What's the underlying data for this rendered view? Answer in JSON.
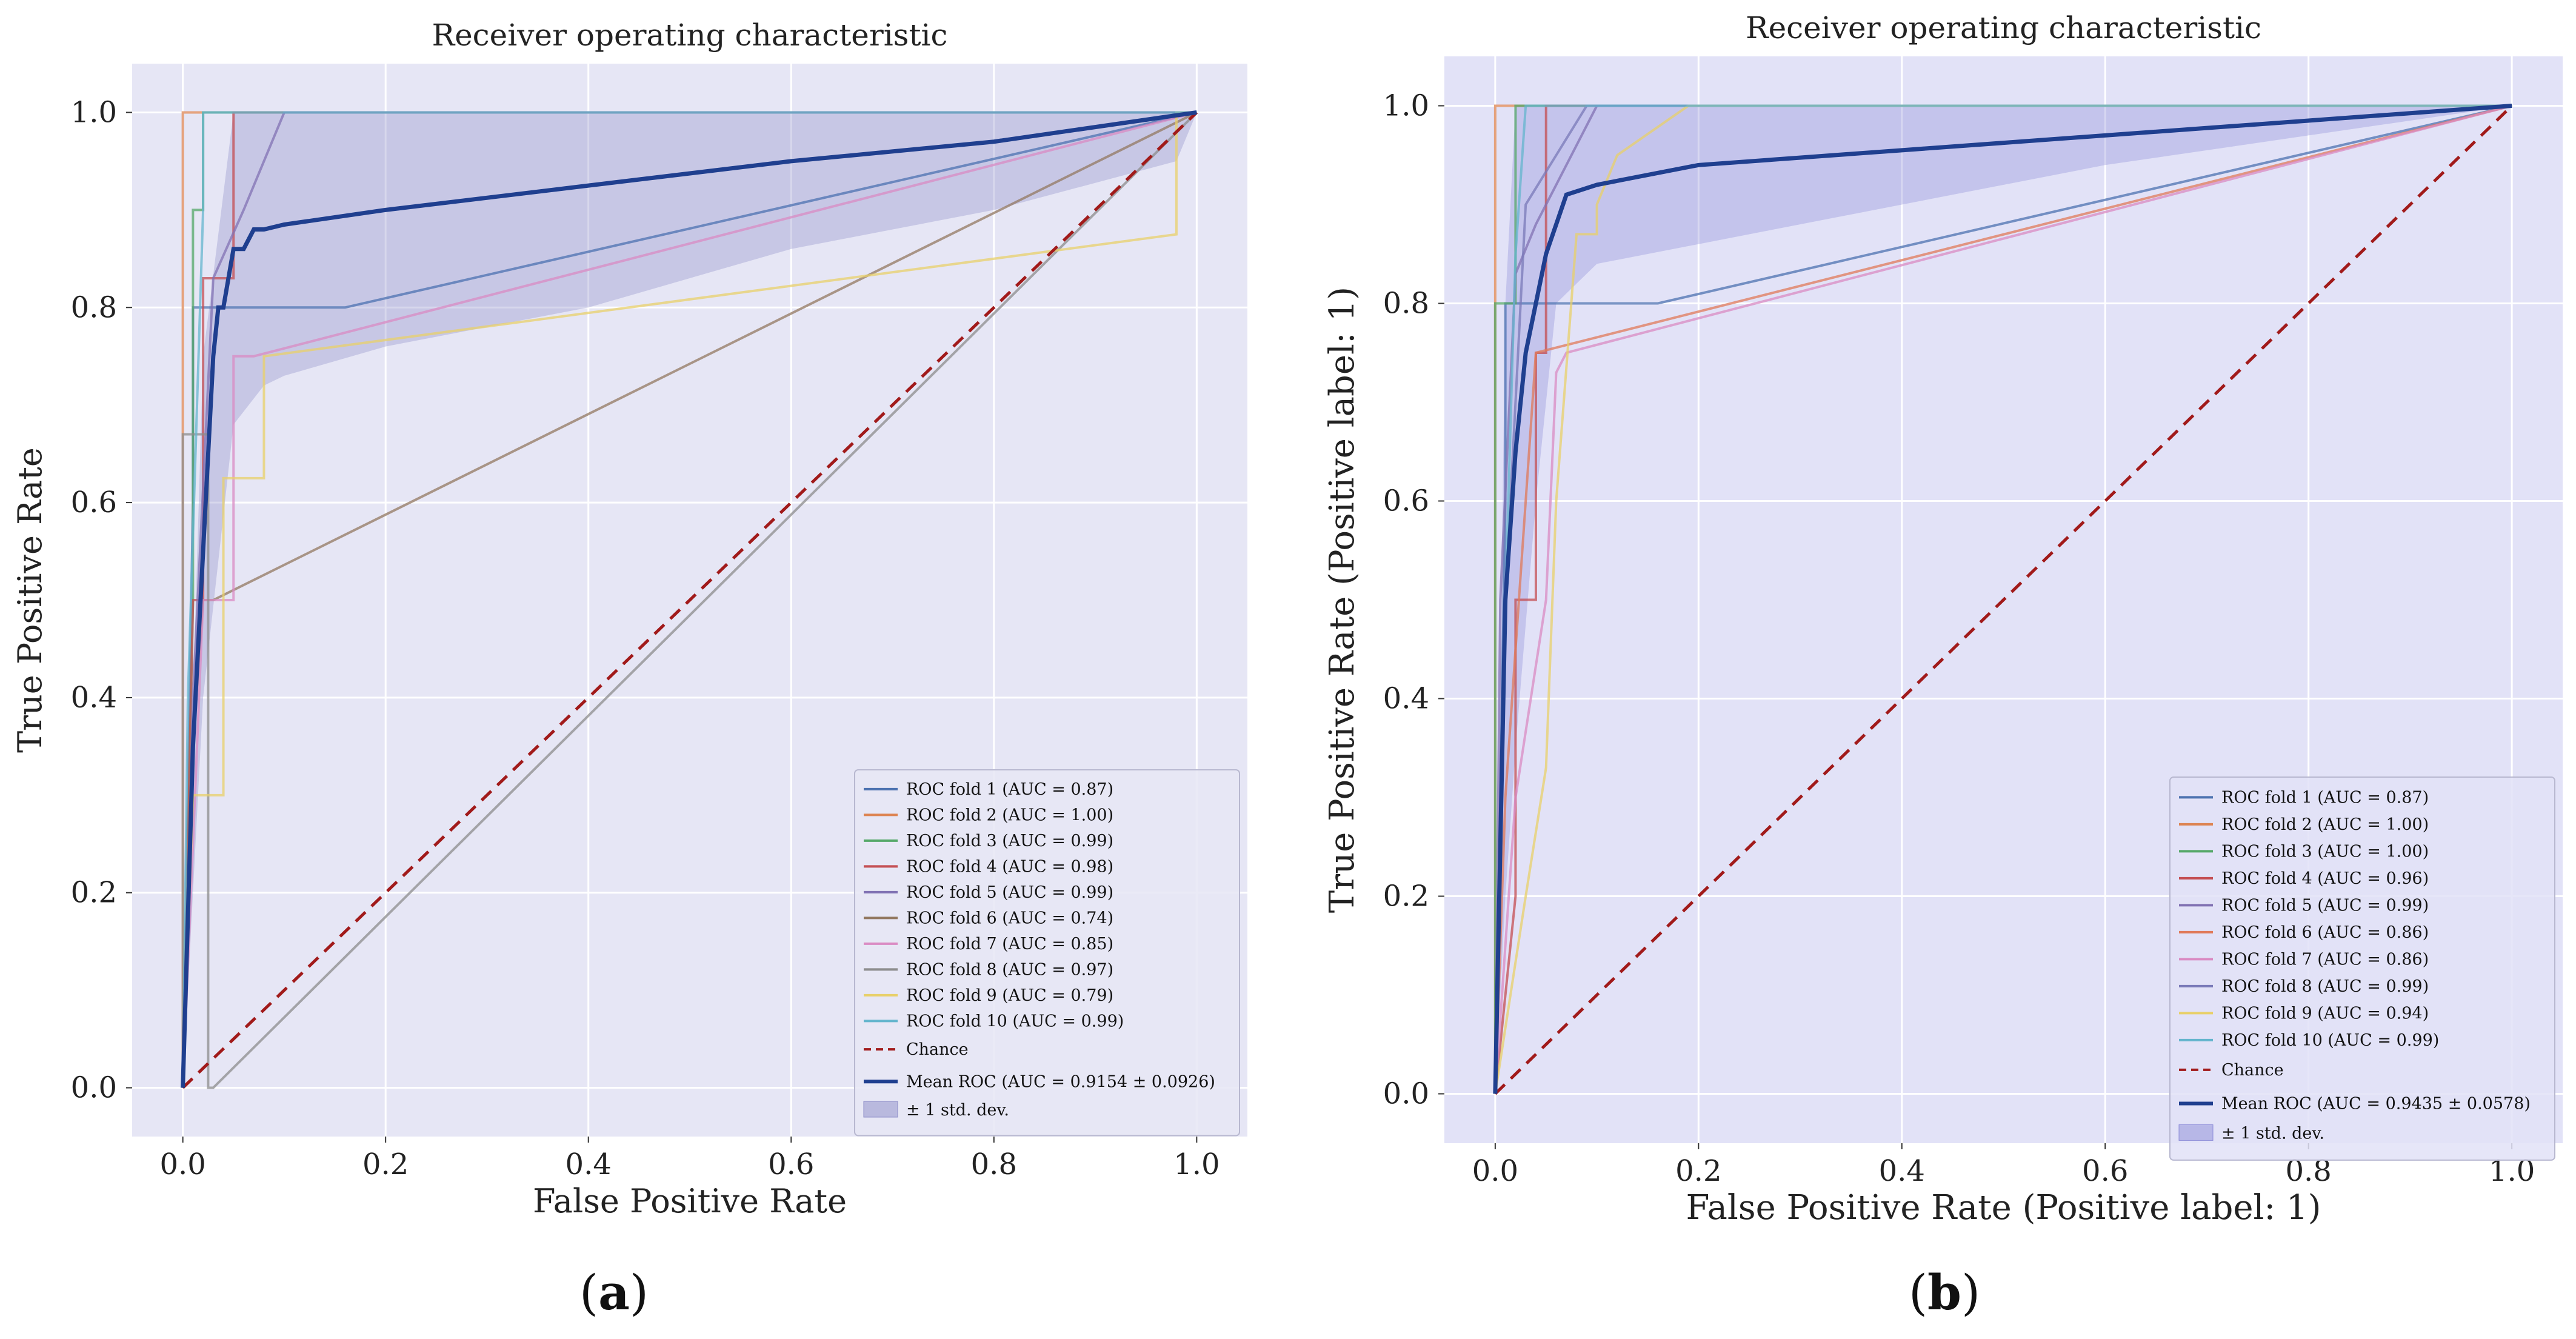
{
  "captions": [
    {
      "open": "(",
      "letter": "a",
      "close": ")"
    },
    {
      "open": "(",
      "letter": "b",
      "close": ")"
    }
  ],
  "chart_data": [
    {
      "type": "line",
      "panel": "a",
      "title": "Receiver operating characteristic",
      "xlabel": "False Positive Rate",
      "ylabel": "True Positive Rate",
      "xlim": [
        -0.05,
        1.05
      ],
      "ylim": [
        -0.05,
        1.05
      ],
      "xticks": [
        0.0,
        0.2,
        0.4,
        0.6,
        0.8,
        1.0
      ],
      "yticks": [
        0.0,
        0.2,
        0.4,
        0.6,
        0.8,
        1.0
      ],
      "tick_labels": [
        "0.0",
        "0.2",
        "0.4",
        "0.6",
        "0.8",
        "1.0"
      ],
      "grid": true,
      "legend_position": "lower-right",
      "series": [
        {
          "name": "ROC fold 1 (AUC = 0.87)",
          "color": "#4c72b0",
          "x": [
            0,
            0.01,
            0.01,
            0.03,
            0.16,
            1.0
          ],
          "y": [
            0,
            0.6,
            0.8,
            0.8,
            0.8,
            1.0
          ]
        },
        {
          "name": "ROC fold 2 (AUC = 1.00)",
          "color": "#dd8452",
          "x": [
            0,
            0,
            1.0
          ],
          "y": [
            0,
            1.0,
            1.0
          ]
        },
        {
          "name": "ROC fold 3 (AUC = 0.99)",
          "color": "#55a868",
          "x": [
            0,
            0.01,
            0.01,
            0.02,
            0.02,
            1.0
          ],
          "y": [
            0,
            0.5,
            0.9,
            0.9,
            1.0,
            1.0
          ]
        },
        {
          "name": "ROC fold 4 (AUC = 0.98)",
          "color": "#c44e52",
          "x": [
            0,
            0.01,
            0.02,
            0.02,
            0.04,
            0.04,
            0.05,
            0.05,
            1.0
          ],
          "y": [
            0,
            0.5,
            0.5,
            0.83,
            0.83,
            0.83,
            0.83,
            1.0,
            1.0
          ]
        },
        {
          "name": "ROC fold 5 (AUC = 0.99)",
          "color": "#8172b3",
          "x": [
            0,
            0.01,
            0.03,
            0.06,
            0.1,
            1.0
          ],
          "y": [
            0,
            0.4,
            0.83,
            0.9,
            1.0,
            1.0
          ]
        },
        {
          "name": "ROC fold 6 (AUC = 0.74)",
          "color": "#937860",
          "x": [
            0,
            0.01,
            0.02,
            0.03,
            1.0
          ],
          "y": [
            0,
            0.35,
            0.5,
            0.5,
            1.0
          ]
        },
        {
          "name": "ROC fold 7 (AUC = 0.85)",
          "color": "#da8bc3",
          "x": [
            0,
            0.02,
            0.05,
            0.05,
            0.07,
            1.0
          ],
          "y": [
            0,
            0.5,
            0.5,
            0.75,
            0.75,
            1.0
          ]
        },
        {
          "name": "ROC fold 8 (AUC = 0.97)",
          "color": "#8c8c8c",
          "x": [
            0,
            0.0,
            0.02,
            0.025,
            0.025,
            0.03,
            1.0
          ],
          "y": [
            0,
            0.67,
            0.67,
            0.67,
            0.0,
            0.0,
            1.0
          ]
        },
        {
          "name": "ROC fold 9 (AUC = 0.79)",
          "color": "#e8d06a",
          "x": [
            0,
            0.01,
            0.04,
            0.04,
            0.08,
            0.08,
            0.98,
            0.98,
            1.0
          ],
          "y": [
            0,
            0.3,
            0.3,
            0.625,
            0.625,
            0.75,
            0.875,
            1.0,
            1.0
          ]
        },
        {
          "name": "ROC fold 10 (AUC = 0.99)",
          "color": "#64b5cd",
          "x": [
            0,
            0.005,
            0.02,
            0.02,
            1.0
          ],
          "y": [
            0,
            0.4,
            0.9,
            1.0,
            1.0
          ]
        }
      ],
      "chance": {
        "name": "Chance",
        "color": "#a11a1a",
        "x": [
          0,
          1
        ],
        "y": [
          0,
          1
        ]
      },
      "mean": {
        "name": "Mean ROC (AUC = 0.9154 ± 0.0926)",
        "color": "#1f3f8f",
        "x": [
          0,
          0.01,
          0.02,
          0.03,
          0.035,
          0.04,
          0.05,
          0.06,
          0.065,
          0.07,
          0.08,
          0.1,
          0.2,
          0.4,
          0.6,
          0.8,
          1.0
        ],
        "y": [
          0,
          0.35,
          0.55,
          0.75,
          0.8,
          0.8,
          0.86,
          0.86,
          0.87,
          0.88,
          0.88,
          0.885,
          0.9,
          0.925,
          0.95,
          0.97,
          1.0
        ]
      },
      "band": {
        "name": "± 1 std. dev.",
        "color": "#8c8cc8",
        "x": [
          0,
          0.02,
          0.05,
          0.08,
          0.1,
          0.2,
          0.4,
          0.6,
          0.8,
          0.98,
          1.0
        ],
        "upper": [
          0.05,
          0.75,
          1.0,
          1.0,
          1.0,
          1.0,
          1.0,
          1.0,
          1.0,
          1.0,
          1.0
        ],
        "lower": [
          0,
          0.4,
          0.68,
          0.72,
          0.73,
          0.76,
          0.8,
          0.86,
          0.9,
          0.95,
          1.0
        ]
      }
    },
    {
      "type": "line",
      "panel": "b",
      "title": "Receiver operating characteristic",
      "xlabel": "False Positive Rate (Positive label: 1)",
      "ylabel": "True Positive Rate (Positive label: 1)",
      "xlim": [
        -0.05,
        1.05
      ],
      "ylim": [
        -0.05,
        1.05
      ],
      "xticks": [
        0.0,
        0.2,
        0.4,
        0.6,
        0.8,
        1.0
      ],
      "yticks": [
        0.0,
        0.2,
        0.4,
        0.6,
        0.8,
        1.0
      ],
      "tick_labels": [
        "0.0",
        "0.2",
        "0.4",
        "0.6",
        "0.8",
        "1.0"
      ],
      "grid": true,
      "legend_position": "lower-right",
      "series": [
        {
          "name": "ROC fold 1 (AUC = 0.87)",
          "color": "#4c72b0",
          "x": [
            0,
            0.01,
            0.01,
            0.03,
            0.16,
            1.0
          ],
          "y": [
            0,
            0.6,
            0.8,
            0.8,
            0.8,
            1.0
          ]
        },
        {
          "name": "ROC fold 2 (AUC = 1.00)",
          "color": "#dd8452",
          "x": [
            0,
            0,
            1.0
          ],
          "y": [
            0,
            1.0,
            1.0
          ]
        },
        {
          "name": "ROC fold 3 (AUC = 1.00)",
          "color": "#55a868",
          "x": [
            0,
            0,
            0.02,
            0.02,
            1.0
          ],
          "y": [
            0,
            0.8,
            0.8,
            1.0,
            1.0
          ]
        },
        {
          "name": "ROC fold 4 (AUC = 0.96)",
          "color": "#c44e52",
          "x": [
            0,
            0.02,
            0.02,
            0.04,
            0.04,
            0.05,
            0.05,
            1.0
          ],
          "y": [
            0,
            0.2,
            0.5,
            0.5,
            0.75,
            0.75,
            1.0,
            1.0
          ]
        },
        {
          "name": "ROC fold 5 (AUC = 0.99)",
          "color": "#8172b3",
          "x": [
            0,
            0.005,
            0.02,
            0.04,
            0.1,
            1.0
          ],
          "y": [
            0,
            0.5,
            0.83,
            0.88,
            1.0,
            1.0
          ]
        },
        {
          "name": "ROC fold 6 (AUC = 0.86)",
          "color": "#e07a5a",
          "x": [
            0,
            0.01,
            0.03,
            0.04,
            1.0
          ],
          "y": [
            0,
            0.3,
            0.6,
            0.75,
            1.0
          ]
        },
        {
          "name": "ROC fold 7 (AUC = 0.86)",
          "color": "#da8bc3",
          "x": [
            0,
            0.02,
            0.05,
            0.06,
            0.07,
            1.0
          ],
          "y": [
            0,
            0.3,
            0.5,
            0.73,
            0.75,
            1.0
          ]
        },
        {
          "name": "ROC fold 8 (AUC = 0.99)",
          "color": "#7a7ab8",
          "x": [
            0,
            0.01,
            0.03,
            0.06,
            0.09,
            1.0
          ],
          "y": [
            0,
            0.5,
            0.9,
            0.95,
            1.0,
            1.0
          ]
        },
        {
          "name": "ROC fold 9 (AUC = 0.94)",
          "color": "#e8d06a",
          "x": [
            0,
            0.03,
            0.05,
            0.06,
            0.08,
            0.1,
            0.1,
            0.12,
            0.19,
            1.0
          ],
          "y": [
            0,
            0.2,
            0.33,
            0.6,
            0.87,
            0.87,
            0.9,
            0.95,
            1.0,
            1.0
          ]
        },
        {
          "name": "ROC fold 10 (AUC = 0.99)",
          "color": "#64b5cd",
          "x": [
            0,
            0.01,
            0.02,
            0.03,
            1.0
          ],
          "y": [
            0,
            0.5,
            0.85,
            1.0,
            1.0
          ]
        }
      ],
      "chance": {
        "name": "Chance",
        "color": "#a11a1a",
        "x": [
          0,
          1
        ],
        "y": [
          0,
          1
        ]
      },
      "mean": {
        "name": "Mean ROC (AUC = 0.9435 ± 0.0578)",
        "color": "#1f3f8f",
        "x": [
          0,
          0.01,
          0.02,
          0.03,
          0.04,
          0.05,
          0.06,
          0.07,
          0.1,
          0.15,
          0.2,
          0.4,
          0.6,
          0.8,
          1.0
        ],
        "y": [
          0,
          0.5,
          0.65,
          0.75,
          0.8,
          0.85,
          0.88,
          0.91,
          0.92,
          0.93,
          0.94,
          0.955,
          0.97,
          0.985,
          1.0
        ]
      },
      "band": {
        "name": "± 1 std. dev.",
        "color": "#8c8cd8",
        "x": [
          0,
          0.01,
          0.02,
          0.04,
          0.06,
          0.1,
          0.2,
          0.4,
          0.6,
          0.8,
          1.0
        ],
        "upper": [
          0.05,
          0.8,
          1.0,
          1.0,
          1.0,
          1.0,
          1.0,
          1.0,
          1.0,
          1.0,
          1.0
        ],
        "lower": [
          0,
          0.2,
          0.35,
          0.6,
          0.8,
          0.84,
          0.86,
          0.9,
          0.94,
          0.97,
          1.0
        ]
      }
    }
  ]
}
